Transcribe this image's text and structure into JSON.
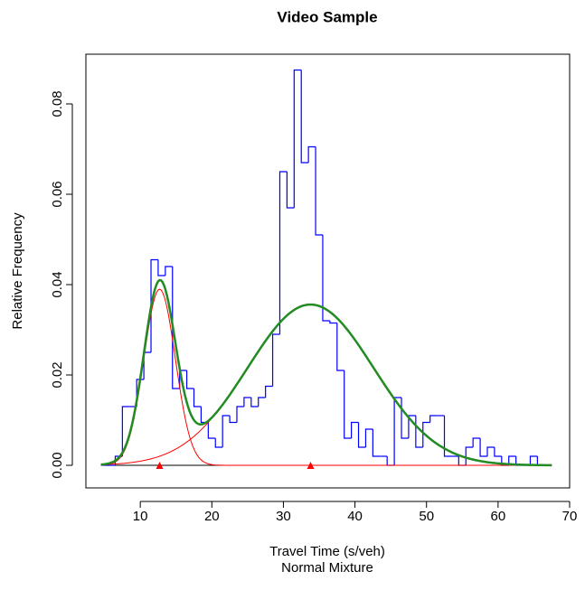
{
  "chart_data": {
    "type": "histogram-mixture",
    "title": "Video Sample",
    "xlabel": "Travel Time (s/veh)",
    "subtitle": "Normal Mixture",
    "ylabel": "Relative Frequency",
    "bins": [
      4.5,
      5.5,
      6.5,
      7.5,
      8.5,
      9.5,
      10.5,
      11.5,
      12.5,
      13.5,
      14.5,
      15.5,
      16.5,
      17.5,
      18.5,
      19.5,
      20.5,
      21.5,
      22.5,
      23.5,
      24.5,
      25.5,
      26.5,
      27.5,
      28.5,
      29.5,
      30.5,
      31.5,
      32.5,
      33.5,
      34.5,
      35.5,
      36.5,
      37.5,
      38.5,
      39.5,
      40.5,
      41.5,
      42.5,
      43.5,
      44.5,
      45.5,
      46.5,
      47.5,
      48.5,
      49.5,
      50.5,
      51.5,
      52.5,
      53.5,
      54.5,
      55.5,
      56.5,
      57.5,
      58.5,
      59.5,
      60.5,
      61.5,
      62.5,
      63.5,
      64.5,
      65.5,
      66.5,
      67.5
    ],
    "values": [
      0,
      0,
      0.002,
      0.013,
      0.013,
      0.019,
      0.025,
      0.0455,
      0.042,
      0.044,
      0.017,
      0.021,
      0.017,
      0.013,
      0.0095,
      0.006,
      0.004,
      0.011,
      0.0095,
      0.013,
      0.015,
      0.013,
      0.015,
      0.0175,
      0.029,
      0.065,
      0.057,
      0.0875,
      0.067,
      0.0705,
      0.051,
      0.032,
      0.0315,
      0.021,
      0.006,
      0.0095,
      0.004,
      0.008,
      0.002,
      0.002,
      0,
      0.015,
      0.006,
      0.011,
      0.004,
      0.0095,
      0.011,
      0.011,
      0.002,
      0.002,
      0,
      0.004,
      0.006,
      0.002,
      0.004,
      0.002,
      0,
      0.002,
      0,
      0,
      0.002,
      0,
      0
    ],
    "hist_color": "#0000ff",
    "components": [
      {
        "mean": 12.7,
        "sd": 2.2,
        "weight": 0.215
      },
      {
        "mean": 33.8,
        "sd": 8.8,
        "weight": 0.785
      }
    ],
    "component_color": "#ff0000",
    "mixture_color": "#228b22",
    "xlim": [
      2.4,
      70
    ],
    "ylim": [
      -0.005,
      0.091
    ],
    "xticks": [
      10,
      20,
      30,
      40,
      50,
      60,
      70
    ],
    "yticks": [
      {
        "value": 0,
        "label": "0.00"
      },
      {
        "value": 0.02,
        "label": "0.02"
      },
      {
        "value": 0.04,
        "label": "0.04"
      },
      {
        "value": 0.06,
        "label": "0.06"
      },
      {
        "value": 0.08,
        "label": "0.08"
      }
    ]
  }
}
